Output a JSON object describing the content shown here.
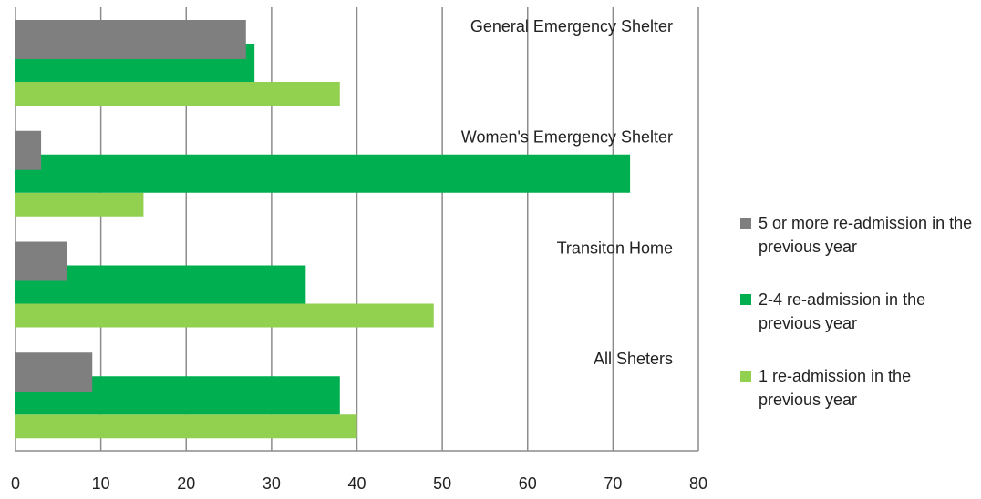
{
  "chart_data": {
    "type": "bar",
    "orientation": "horizontal",
    "categories": [
      "General Emergency Shelter",
      "Women's Emergency Shelter",
      "Transiton Home",
      "All Sheters"
    ],
    "series": [
      {
        "name": "5 or more re-admission in the previous year",
        "color": "#7f7f7f",
        "values": [
          27,
          3,
          6,
          9
        ]
      },
      {
        "name": "2-4 re-admission in the previous year",
        "color": "#00b050",
        "values": [
          28,
          72,
          34,
          38
        ]
      },
      {
        "name": "1 re-admission in the previous year",
        "color": "#92d050",
        "values": [
          38,
          15,
          49,
          40
        ]
      }
    ],
    "xlim": [
      0,
      80
    ],
    "xticks": [
      0,
      10,
      20,
      30,
      40,
      50,
      60,
      70,
      80
    ],
    "grid": true,
    "legend": "right"
  }
}
